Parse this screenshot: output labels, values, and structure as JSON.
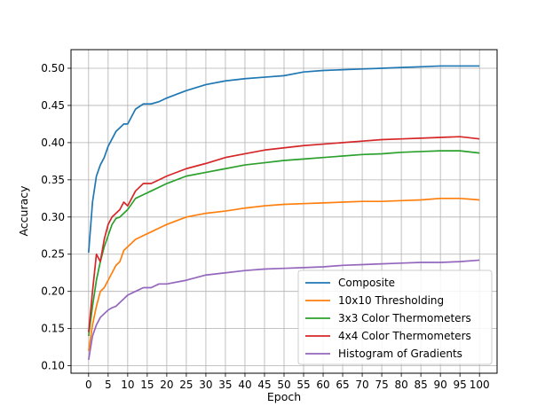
{
  "chart_data": {
    "type": "line",
    "title": "",
    "xlabel": "Epoch",
    "ylabel": "Accuracy",
    "xlim": [
      -4.5,
      104.5
    ],
    "ylim": [
      0.09,
      0.525
    ],
    "xticks": [
      0,
      5,
      10,
      15,
      20,
      25,
      30,
      35,
      40,
      45,
      50,
      55,
      60,
      65,
      70,
      75,
      80,
      85,
      90,
      95,
      100
    ],
    "xtick_labels": [
      "0",
      "5",
      "10",
      "15",
      "20",
      "25",
      "30",
      "35",
      "40",
      "45",
      "50",
      "55",
      "60",
      "65",
      "70",
      "75",
      "80",
      "85",
      "90",
      "95",
      "100"
    ],
    "yticks": [
      0.1,
      0.15,
      0.2,
      0.25,
      0.3,
      0.35,
      0.4,
      0.45,
      0.5
    ],
    "ytick_labels": [
      "0.10",
      "0.15",
      "0.20",
      "0.25",
      "0.30",
      "0.35",
      "0.40",
      "0.45",
      "0.50"
    ],
    "grid": true,
    "legend_position": "lower-right",
    "x_anchor_epochs": [
      0,
      1,
      2,
      3,
      4,
      5,
      6,
      7,
      8,
      9,
      10,
      12,
      14,
      16,
      18,
      20,
      25,
      30,
      35,
      40,
      45,
      50,
      55,
      60,
      65,
      70,
      75,
      80,
      85,
      90,
      95,
      100
    ],
    "series": [
      {
        "name": "Composite",
        "color": "#1f77b4",
        "values": [
          0.252,
          0.32,
          0.355,
          0.37,
          0.38,
          0.395,
          0.405,
          0.415,
          0.42,
          0.425,
          0.425,
          0.445,
          0.452,
          0.452,
          0.455,
          0.46,
          0.47,
          0.478,
          0.483,
          0.486,
          0.488,
          0.49,
          0.495,
          0.497,
          0.498,
          0.499,
          0.5,
          0.501,
          0.502,
          0.503,
          0.503,
          0.503
        ]
      },
      {
        "name": "10x10 Thresholding",
        "color": "#ff7f0e",
        "values": [
          0.12,
          0.155,
          0.18,
          0.2,
          0.205,
          0.215,
          0.225,
          0.235,
          0.24,
          0.255,
          0.26,
          0.27,
          0.275,
          0.28,
          0.285,
          0.29,
          0.3,
          0.305,
          0.308,
          0.312,
          0.315,
          0.317,
          0.318,
          0.319,
          0.32,
          0.321,
          0.321,
          0.322,
          0.323,
          0.325,
          0.325,
          0.323
        ]
      },
      {
        "name": "3x3 Color Thermometers",
        "color": "#2ca02c",
        "values": [
          0.14,
          0.18,
          0.215,
          0.24,
          0.26,
          0.275,
          0.29,
          0.298,
          0.3,
          0.305,
          0.31,
          0.325,
          0.33,
          0.335,
          0.34,
          0.345,
          0.355,
          0.36,
          0.365,
          0.37,
          0.373,
          0.376,
          0.378,
          0.38,
          0.382,
          0.384,
          0.385,
          0.387,
          0.388,
          0.389,
          0.389,
          0.386
        ]
      },
      {
        "name": "4x4 Color Thermometers",
        "color": "#d62728",
        "values": [
          0.145,
          0.2,
          0.25,
          0.24,
          0.27,
          0.29,
          0.3,
          0.305,
          0.31,
          0.32,
          0.315,
          0.335,
          0.345,
          0.345,
          0.35,
          0.355,
          0.365,
          0.372,
          0.38,
          0.385,
          0.39,
          0.393,
          0.396,
          0.398,
          0.4,
          0.402,
          0.404,
          0.405,
          0.406,
          0.407,
          0.408,
          0.405
        ]
      },
      {
        "name": "Histogram of Gradients",
        "color": "#9467bd",
        "values": [
          0.108,
          0.14,
          0.155,
          0.165,
          0.17,
          0.175,
          0.178,
          0.18,
          0.185,
          0.19,
          0.195,
          0.2,
          0.205,
          0.205,
          0.21,
          0.21,
          0.215,
          0.222,
          0.225,
          0.228,
          0.23,
          0.231,
          0.232,
          0.233,
          0.235,
          0.236,
          0.237,
          0.238,
          0.239,
          0.239,
          0.24,
          0.242
        ]
      }
    ]
  }
}
